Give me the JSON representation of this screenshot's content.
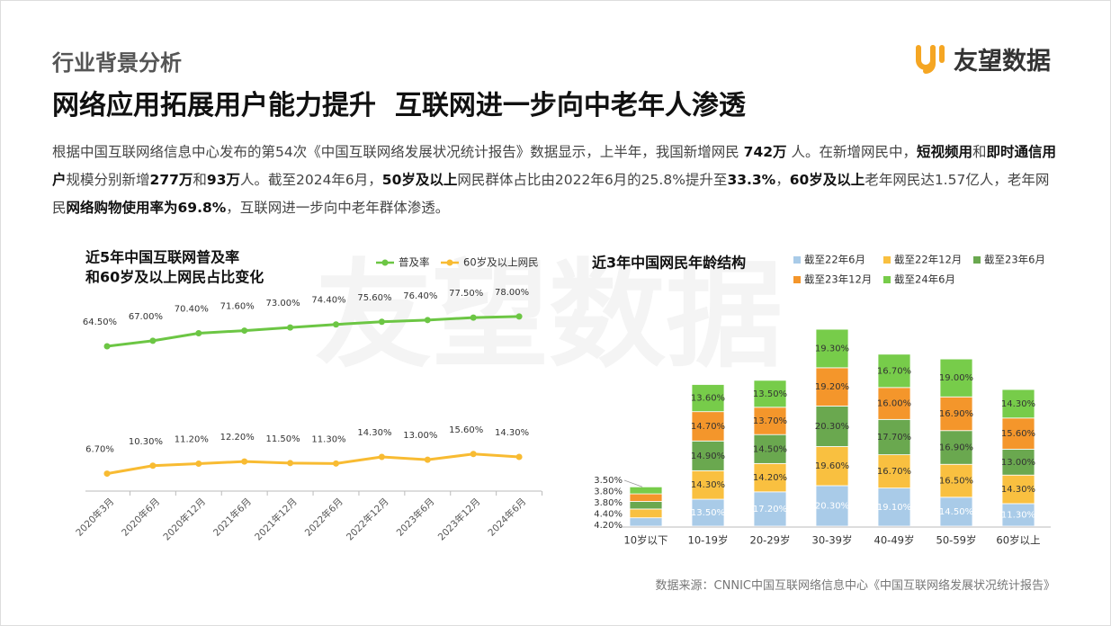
{
  "header": {
    "section": "行业背景分析",
    "title": "网络应用拓展用户能力提升  互联网进一步向中老年人渗透",
    "logo": "友望数据"
  },
  "paragraph": [
    {
      "text": "根据中国互联网络信息中心发布的第54次《中国互联网络发展状况统计报告》数据显示，上半年，我国新增网民 ",
      "bold": false
    },
    {
      "text": "742万",
      "bold": true
    },
    {
      "text": " 人。在新增网民中，",
      "bold": false
    },
    {
      "text": "短视频用",
      "bold": true
    },
    {
      "text": "和",
      "bold": false
    },
    {
      "text": "即时通信用户",
      "bold": true
    },
    {
      "text": "规模分别新增",
      "bold": false
    },
    {
      "text": "277万",
      "bold": true
    },
    {
      "text": "和",
      "bold": false
    },
    {
      "text": "93万",
      "bold": true
    },
    {
      "text": "人。截至2024年6月，",
      "bold": false
    },
    {
      "text": "50岁及以上",
      "bold": true
    },
    {
      "text": "网民群体占比由2022年6月的25.8%提升至",
      "bold": false
    },
    {
      "text": "33.3%",
      "bold": true
    },
    {
      "text": "，",
      "bold": false
    },
    {
      "text": "60岁及以上",
      "bold": true
    },
    {
      "text": "老年网民达1.57亿人，老年网民",
      "bold": false
    },
    {
      "text": "网络购物使用率为69.8%",
      "bold": true
    },
    {
      "text": "，互联网进一步向中老年群体渗透。",
      "bold": false
    }
  ],
  "watermark": "友望数据",
  "chart_data": [
    {
      "type": "line",
      "title": [
        "近5年中国互联网普及率",
        "和60岁及以上网民占比变化"
      ],
      "categories": [
        "2020年3月",
        "2020年6月",
        "2020年12月",
        "2021年6月",
        "2021年12月",
        "2022年6月",
        "2022年12月",
        "2023年6月",
        "2023年12月",
        "2024年6月"
      ],
      "ylim": [
        0,
        100
      ],
      "series": [
        {
          "name": "普及率",
          "color": "#6cc644",
          "values": [
            64.5,
            67.0,
            70.4,
            71.6,
            73.0,
            74.4,
            75.6,
            76.4,
            77.5,
            78.0
          ],
          "value_labels": [
            "64.50%",
            "67.00%",
            "70.40%",
            "71.60%",
            "73.00%",
            "74.40%",
            "75.60%",
            "76.40%",
            "77.50%",
            "78.00%"
          ]
        },
        {
          "name": "60岁及以上网民",
          "color": "#f8bb32",
          "values": [
            6.7,
            10.3,
            11.2,
            12.2,
            11.5,
            11.3,
            14.3,
            13.0,
            15.6,
            14.3
          ],
          "value_labels": [
            "6.70%",
            "10.30%",
            "11.20%",
            "12.20%",
            "11.50%",
            "11.30%",
            "14.30%",
            "13.00%",
            "15.60%",
            "14.30%"
          ]
        }
      ]
    },
    {
      "type": "stacked_bar",
      "title": "近3年中国网民年龄结构",
      "categories": [
        "10岁以下",
        "10-19岁",
        "20-29岁",
        "30-39岁",
        "40-49岁",
        "50-59岁",
        "60岁以上"
      ],
      "ylim": [
        0,
        110
      ],
      "series": [
        {
          "name": "截至22年6月",
          "color": "#a9cbe8",
          "values": [
            4.2,
            13.5,
            17.2,
            20.3,
            19.1,
            14.5,
            11.3
          ],
          "value_labels": [
            "4.20%",
            "13.50%",
            "17.20%",
            "20.30%",
            "19.10%",
            "14.50%",
            "11.30%"
          ]
        },
        {
          "name": "截至22年12月",
          "color": "#f9c040",
          "values": [
            4.4,
            14.3,
            14.2,
            19.6,
            16.7,
            16.5,
            14.3
          ],
          "value_labels": [
            "4.40%",
            "14.30%",
            "14.20%",
            "19.60%",
            "16.70%",
            "16.50%",
            "14.30%"
          ]
        },
        {
          "name": "截至23年6月",
          "color": "#6aa84f",
          "values": [
            3.8,
            14.9,
            14.5,
            20.3,
            17.7,
            16.9,
            13.0
          ],
          "value_labels": [
            "3.80%",
            "14.90%",
            "14.50%",
            "20.30%",
            "17.70%",
            "16.90%",
            "13.00%"
          ]
        },
        {
          "name": "截至23年12月",
          "color": "#f4962b",
          "values": [
            3.8,
            14.7,
            13.7,
            19.2,
            16.0,
            16.9,
            15.6
          ],
          "value_labels": [
            "3.80%",
            "14.70%",
            "13.70%",
            "19.20%",
            "16.00%",
            "16.90%",
            "15.60%"
          ]
        },
        {
          "name": "截至24年6月",
          "color": "#77cc4a",
          "values": [
            3.5,
            13.6,
            13.5,
            19.3,
            16.7,
            19.0,
            14.3
          ],
          "value_labels": [
            "3.50%",
            "13.60%",
            "13.50%",
            "19.30%",
            "16.70%",
            "19.00%",
            "14.30%"
          ]
        }
      ]
    }
  ],
  "source": "数据来源：CNNIC中国互联网络信息中心《中国互联网络发展状况统计报告》"
}
